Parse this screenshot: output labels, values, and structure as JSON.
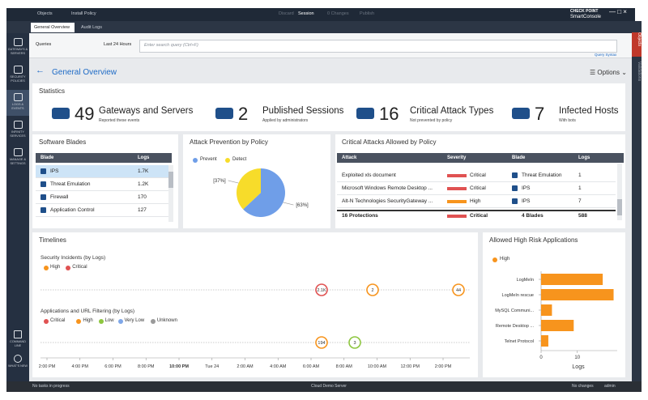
{
  "top_bar": {
    "objects": "Objects",
    "install": "Install Policy",
    "discard": "Discard",
    "session": "Session",
    "changes": "0 Changes",
    "publish": "Publish",
    "brand": "CHECK POINT",
    "product": "SmartConsole"
  },
  "tabs": [
    "General Overview",
    "Audit Logs"
  ],
  "sidebar": [
    "GATEWAYS & SERVERS",
    "SECURITY POLICIES",
    "LOGS & EVENTS",
    "INFINITY SERVICES",
    "MANAGE & SETTINGS"
  ],
  "sidebar_bottom": [
    "COMMAND LINE",
    "WHAT'S NEW"
  ],
  "query_bar": {
    "queries": "Queries",
    "range": "Last 24 Hours",
    "placeholder": "Enter search query (Ctrl+F)",
    "syntax": "Query Syntax"
  },
  "right_strip": [
    "Objects",
    "Validations"
  ],
  "header": {
    "title": "General Overview",
    "options": "Options"
  },
  "statistics": {
    "title": "Statistics",
    "items": [
      {
        "number": "49",
        "label": "Gateways and Servers",
        "sub": "Reported these events"
      },
      {
        "number": "2",
        "label": "Published Sessions",
        "sub": "Applied by administrators"
      },
      {
        "number": "16",
        "label": "Critical Attack Types",
        "sub": "Not prevented by policy"
      },
      {
        "number": "7",
        "label": "Infected Hosts",
        "sub": "With bots"
      }
    ]
  },
  "software_blades": {
    "title": "Software Blades",
    "columns": [
      "Blade",
      "Logs"
    ],
    "rows": [
      [
        "IPS",
        "1.7K"
      ],
      [
        "Threat Emulation",
        "1.2K"
      ],
      [
        "Firewall",
        "170"
      ],
      [
        "Application Control",
        "127"
      ]
    ]
  },
  "critical_attacks": {
    "title": "Critical Attacks Allowed by Policy",
    "columns": [
      "Attack",
      "Severity",
      "Blade",
      "Logs"
    ],
    "rows": [
      [
        "Exploited xls document",
        "Critical",
        "Threat Emulation",
        "1"
      ],
      [
        "Microsoft Windows Remote Desktop ...",
        "Critical",
        "IPS",
        "1"
      ],
      [
        "Alt-N Technologies SecurityGateway ...",
        "High",
        "IPS",
        "7"
      ]
    ],
    "footer": [
      "16 Protections",
      "Critical",
      "4 Blades",
      "588"
    ]
  },
  "timelines": {
    "title": "Timelines",
    "ticks": [
      "2:00 PM",
      "4:00 PM",
      "6:00 PM",
      "8:00 PM",
      "10:00 PM",
      "Tue 24",
      "2:00 AM",
      "4:00 AM",
      "6:00 AM",
      "8:00 AM",
      "10:00 AM",
      "12:00 PM",
      "2:00 PM"
    ],
    "rows": [
      {
        "title": "Security Incidents (by Logs)",
        "legend": [
          {
            "name": "High",
            "color": "#f7941d"
          },
          {
            "name": "Critical",
            "color": "#e05252"
          }
        ],
        "events": [
          {
            "label": "2.1K",
            "color": "#e05252"
          },
          {
            "label": "2",
            "color": "#f7941d"
          },
          {
            "label": "44",
            "color": "#f7941d"
          }
        ]
      },
      {
        "title": "Applications and URL Filtering (by Logs)",
        "legend": [
          {
            "name": "Critical",
            "color": "#e05252"
          },
          {
            "name": "High",
            "color": "#f7941d"
          },
          {
            "name": "Low",
            "color": "#8dc63f"
          },
          {
            "name": "Very Low",
            "color": "#7fa7e8"
          },
          {
            "name": "Unknown",
            "color": "#9a9a9a"
          }
        ],
        "events": [
          {
            "label": "194",
            "color": "#f7941d"
          },
          {
            "label": "3",
            "color": "#8dc63f"
          }
        ]
      }
    ]
  },
  "status_bar": {
    "left": "No tasks in progress",
    "center": "Cloud Demo Server",
    "changes": "No changes",
    "user": "admin"
  },
  "chart_data": [
    {
      "type": "pie",
      "title": "Attack Prevention by Policy",
      "categories": [
        "Prevent",
        "Detect"
      ],
      "values": [
        63,
        37
      ],
      "value_labels": [
        "[63%]",
        "[37%]"
      ],
      "colors": [
        "#6f9ee8",
        "#f7dc2a"
      ]
    },
    {
      "type": "bar",
      "orientation": "horizontal",
      "title": "Allowed High Risk Applications",
      "categories": [
        "LogMeIn",
        "LogMeIn rescue",
        "MySQL Communi...",
        "Remote Desktop ...",
        "Telnet Protocol"
      ],
      "series": [
        {
          "name": "High",
          "color": "#f7941d",
          "values": [
            17,
            20,
            3,
            9,
            2
          ]
        }
      ],
      "xlim": [
        0,
        21
      ],
      "xticks": [
        0,
        10
      ],
      "xlabel": "Logs"
    }
  ]
}
